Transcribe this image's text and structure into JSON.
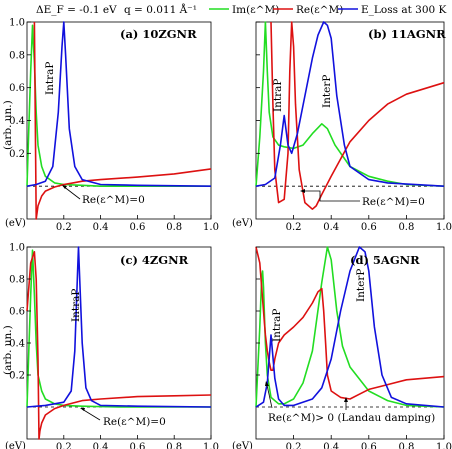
{
  "chart_data": [
    {
      "id": "a",
      "type": "line",
      "title": "(a) 10ZGNR",
      "xlabel": "(eV)",
      "ylabel": "(arb. un.)",
      "xlim": [
        0,
        1.0
      ],
      "ylim": [
        -0.2,
        1.0
      ],
      "xticks": [
        "0.2",
        "0.4",
        "0.6",
        "0.8",
        "1.0"
      ],
      "yticks": [
        "0.2",
        "0.4",
        "0.6",
        "0.8",
        "1.0"
      ],
      "annotations": [
        "IntraP",
        "Re(ε^M)=0"
      ],
      "series": [
        {
          "key": "im",
          "color": "#22dd22",
          "x": [
            0,
            0.01,
            0.02,
            0.03,
            0.04,
            0.05,
            0.06,
            0.08,
            0.1,
            0.15,
            0.2,
            0.3,
            0.4,
            0.6,
            0.8,
            1.0
          ],
          "y": [
            0,
            0.35,
            0.7,
            0.98,
            0.75,
            0.45,
            0.25,
            0.12,
            0.06,
            0.02,
            0.01,
            0.005,
            0,
            0,
            0,
            0
          ]
        },
        {
          "key": "re",
          "color": "#dd1111",
          "x": [
            0.04,
            0.045,
            0.05,
            0.06,
            0.08,
            0.1,
            0.15,
            0.2,
            0.25,
            0.3,
            0.4,
            0.6,
            0.8,
            1.0
          ],
          "y": [
            1.0,
            0.4,
            -0.2,
            -0.12,
            -0.06,
            -0.03,
            -0.005,
            0.01,
            0.02,
            0.03,
            0.04,
            0.055,
            0.075,
            0.105
          ]
        },
        {
          "key": "eloss",
          "color": "#1111dd",
          "x": [
            0,
            0.05,
            0.1,
            0.14,
            0.17,
            0.19,
            0.2,
            0.21,
            0.23,
            0.26,
            0.3,
            0.4,
            0.6,
            1.0
          ],
          "y": [
            0,
            0.01,
            0.03,
            0.12,
            0.45,
            0.85,
            1.0,
            0.8,
            0.35,
            0.12,
            0.04,
            0.01,
            0.005,
            0
          ]
        }
      ]
    },
    {
      "id": "b",
      "type": "line",
      "title": "(b) 11AGNR",
      "xlabel": "(eV)",
      "ylabel": "",
      "xlim": [
        0,
        1.0
      ],
      "ylim": [
        -0.2,
        1.0
      ],
      "xticks": [
        "0.2",
        "0.4",
        "0.6",
        "0.8",
        "1.0"
      ],
      "yticks": [],
      "annotations": [
        "IntraP",
        "InterP",
        "Re(ε^M)=0"
      ],
      "series": [
        {
          "key": "im",
          "color": "#22dd22",
          "x": [
            0,
            0.02,
            0.04,
            0.05,
            0.06,
            0.07,
            0.09,
            0.12,
            0.15,
            0.2,
            0.25,
            0.3,
            0.35,
            0.38,
            0.42,
            0.5,
            0.6,
            0.7,
            0.8,
            1.0
          ],
          "y": [
            0,
            0.3,
            0.7,
            1.0,
            0.7,
            0.45,
            0.3,
            0.25,
            0.24,
            0.23,
            0.25,
            0.32,
            0.38,
            0.35,
            0.25,
            0.12,
            0.06,
            0.03,
            0.01,
            0
          ]
        },
        {
          "key": "re",
          "color": "#dd1111",
          "x": [
            0.08,
            0.09,
            0.1,
            0.12,
            0.15,
            0.17,
            0.18,
            0.19,
            0.2,
            0.21,
            0.23,
            0.26,
            0.3,
            0.32,
            0.35,
            0.4,
            0.5,
            0.6,
            0.7,
            0.8,
            1.0
          ],
          "y": [
            1.0,
            0.5,
            0.1,
            -0.1,
            -0.08,
            0.2,
            0.7,
            1.0,
            0.85,
            0.5,
            0.1,
            -0.1,
            -0.14,
            -0.12,
            -0.05,
            0.06,
            0.27,
            0.4,
            0.5,
            0.56,
            0.63
          ]
        },
        {
          "key": "eloss",
          "color": "#1111dd",
          "x": [
            0,
            0.05,
            0.1,
            0.13,
            0.15,
            0.17,
            0.19,
            0.22,
            0.26,
            0.3,
            0.33,
            0.36,
            0.38,
            0.4,
            0.43,
            0.47,
            0.5,
            0.6,
            0.7,
            1.0
          ],
          "y": [
            0,
            0.01,
            0.05,
            0.25,
            0.43,
            0.25,
            0.2,
            0.32,
            0.55,
            0.78,
            0.92,
            1.0,
            0.98,
            0.9,
            0.55,
            0.25,
            0.12,
            0.04,
            0.02,
            0
          ]
        }
      ]
    },
    {
      "id": "c",
      "type": "line",
      "title": "(c) 4ZGNR",
      "xlabel": "(eV)",
      "ylabel": "(arb. un.)",
      "xlim": [
        0,
        1.0
      ],
      "ylim": [
        -0.2,
        1.0
      ],
      "xticks": [
        "0.2",
        "0.4",
        "0.6",
        "0.8",
        "1.0"
      ],
      "yticks": [
        "0.2",
        "0.4",
        "0.6",
        "0.8",
        "1.0"
      ],
      "annotations": [
        "IntraP",
        "Re(ε^M)=0"
      ],
      "series": [
        {
          "key": "im",
          "color": "#22dd22",
          "x": [
            0,
            0.01,
            0.02,
            0.03,
            0.04,
            0.05,
            0.06,
            0.08,
            0.1,
            0.15,
            0.2,
            0.3,
            0.5,
            1.0
          ],
          "y": [
            0,
            0.35,
            0.7,
            0.98,
            0.7,
            0.4,
            0.2,
            0.1,
            0.05,
            0.02,
            0.01,
            0.005,
            0,
            0
          ]
        },
        {
          "key": "re",
          "color": "#dd1111",
          "x": [
            0,
            0.02,
            0.04,
            0.05,
            0.06,
            0.065,
            0.07,
            0.08,
            0.1,
            0.15,
            0.2,
            0.25,
            0.3,
            0.4,
            0.6,
            0.8,
            1.0
          ],
          "y": [
            0.6,
            0.9,
            0.97,
            0.8,
            0.3,
            -0.2,
            -0.15,
            -0.1,
            -0.05,
            -0.01,
            0.01,
            0.025,
            0.04,
            0.05,
            0.065,
            0.07,
            0.075
          ]
        },
        {
          "key": "eloss",
          "color": "#1111dd",
          "x": [
            0,
            0.1,
            0.2,
            0.24,
            0.26,
            0.275,
            0.28,
            0.285,
            0.3,
            0.32,
            0.35,
            0.4,
            0.6,
            1.0
          ],
          "y": [
            0,
            0.01,
            0.03,
            0.1,
            0.35,
            0.85,
            1.0,
            0.85,
            0.4,
            0.12,
            0.04,
            0.01,
            0.005,
            0
          ]
        }
      ]
    },
    {
      "id": "d",
      "type": "line",
      "title": "(d) 5AGNR",
      "xlabel": "(eV)",
      "ylabel": "",
      "xlim": [
        0,
        1.0
      ],
      "ylim": [
        -0.2,
        1.0
      ],
      "xticks": [
        "0.2",
        "0.4",
        "0.6",
        "0.8",
        "1.0"
      ],
      "yticks": [],
      "annotations": [
        "IntraP",
        "InterP",
        "Re(ε^M)> 0 (Landau damping)"
      ],
      "series": [
        {
          "key": "im",
          "color": "#22dd22",
          "x": [
            0,
            0.02,
            0.03,
            0.035,
            0.04,
            0.05,
            0.06,
            0.08,
            0.12,
            0.15,
            0.2,
            0.25,
            0.3,
            0.35,
            0.38,
            0.4,
            0.43,
            0.46,
            0.5,
            0.6,
            0.7,
            0.8,
            1.0
          ],
          "y": [
            0,
            0.5,
            0.8,
            0.85,
            0.75,
            0.4,
            0.2,
            0.06,
            0.02,
            0.02,
            0.05,
            0.15,
            0.35,
            0.78,
            1.0,
            0.92,
            0.6,
            0.38,
            0.25,
            0.1,
            0.04,
            0.01,
            0
          ]
        },
        {
          "key": "re",
          "color": "#dd1111",
          "x": [
            0,
            0.02,
            0.04,
            0.05,
            0.06,
            0.07,
            0.08,
            0.09,
            0.1,
            0.12,
            0.15,
            0.2,
            0.25,
            0.3,
            0.33,
            0.35,
            0.36,
            0.37,
            0.38,
            0.4,
            0.45,
            0.5,
            0.55,
            0.6,
            0.7,
            0.8,
            0.9,
            1.0
          ],
          "y": [
            1.0,
            0.9,
            0.6,
            0.45,
            0.35,
            0.28,
            0.23,
            0.23,
            0.3,
            0.4,
            0.45,
            0.5,
            0.56,
            0.65,
            0.72,
            0.74,
            0.6,
            0.4,
            0.2,
            0.1,
            0.06,
            0.05,
            0.08,
            0.11,
            0.14,
            0.17,
            0.18,
            0.19
          ]
        },
        {
          "key": "eloss",
          "color": "#1111dd",
          "x": [
            0,
            0.04,
            0.06,
            0.08,
            0.1,
            0.12,
            0.15,
            0.2,
            0.3,
            0.35,
            0.4,
            0.45,
            0.5,
            0.55,
            0.58,
            0.6,
            0.63,
            0.67,
            0.72,
            0.8,
            1.0
          ],
          "y": [
            0,
            0.03,
            0.15,
            0.45,
            0.18,
            0.05,
            0.01,
            0.01,
            0.05,
            0.12,
            0.3,
            0.6,
            0.85,
            1.0,
            0.97,
            0.85,
            0.5,
            0.2,
            0.06,
            0.02,
            0
          ]
        }
      ]
    }
  ],
  "header": {
    "delta": "ΔE_F = -0.1 eV",
    "q": "q = 0.011 Å⁻¹",
    "legend": [
      {
        "key": "im",
        "label": "Im(ε^M)",
        "color": "#22dd22"
      },
      {
        "key": "re",
        "label": "Re(ε^M)",
        "color": "#dd1111"
      },
      {
        "key": "eloss",
        "label": "E_Loss at 300 K",
        "color": "#1111dd"
      }
    ]
  }
}
